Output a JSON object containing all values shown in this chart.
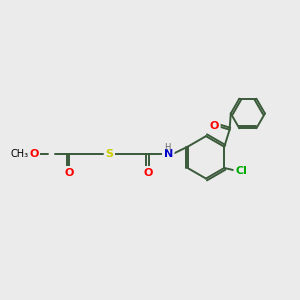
{
  "background_color": "#ebebeb",
  "bond_color": "#3a5a3a",
  "bond_width": 1.4,
  "atom_colors": {
    "O": "#ff0000",
    "N": "#0000cc",
    "S": "#cccc00",
    "Cl": "#00aa00",
    "H": "#666666",
    "C": "#000000"
  },
  "font_size": 8,
  "figsize": [
    3.0,
    3.0
  ],
  "dpi": 100
}
